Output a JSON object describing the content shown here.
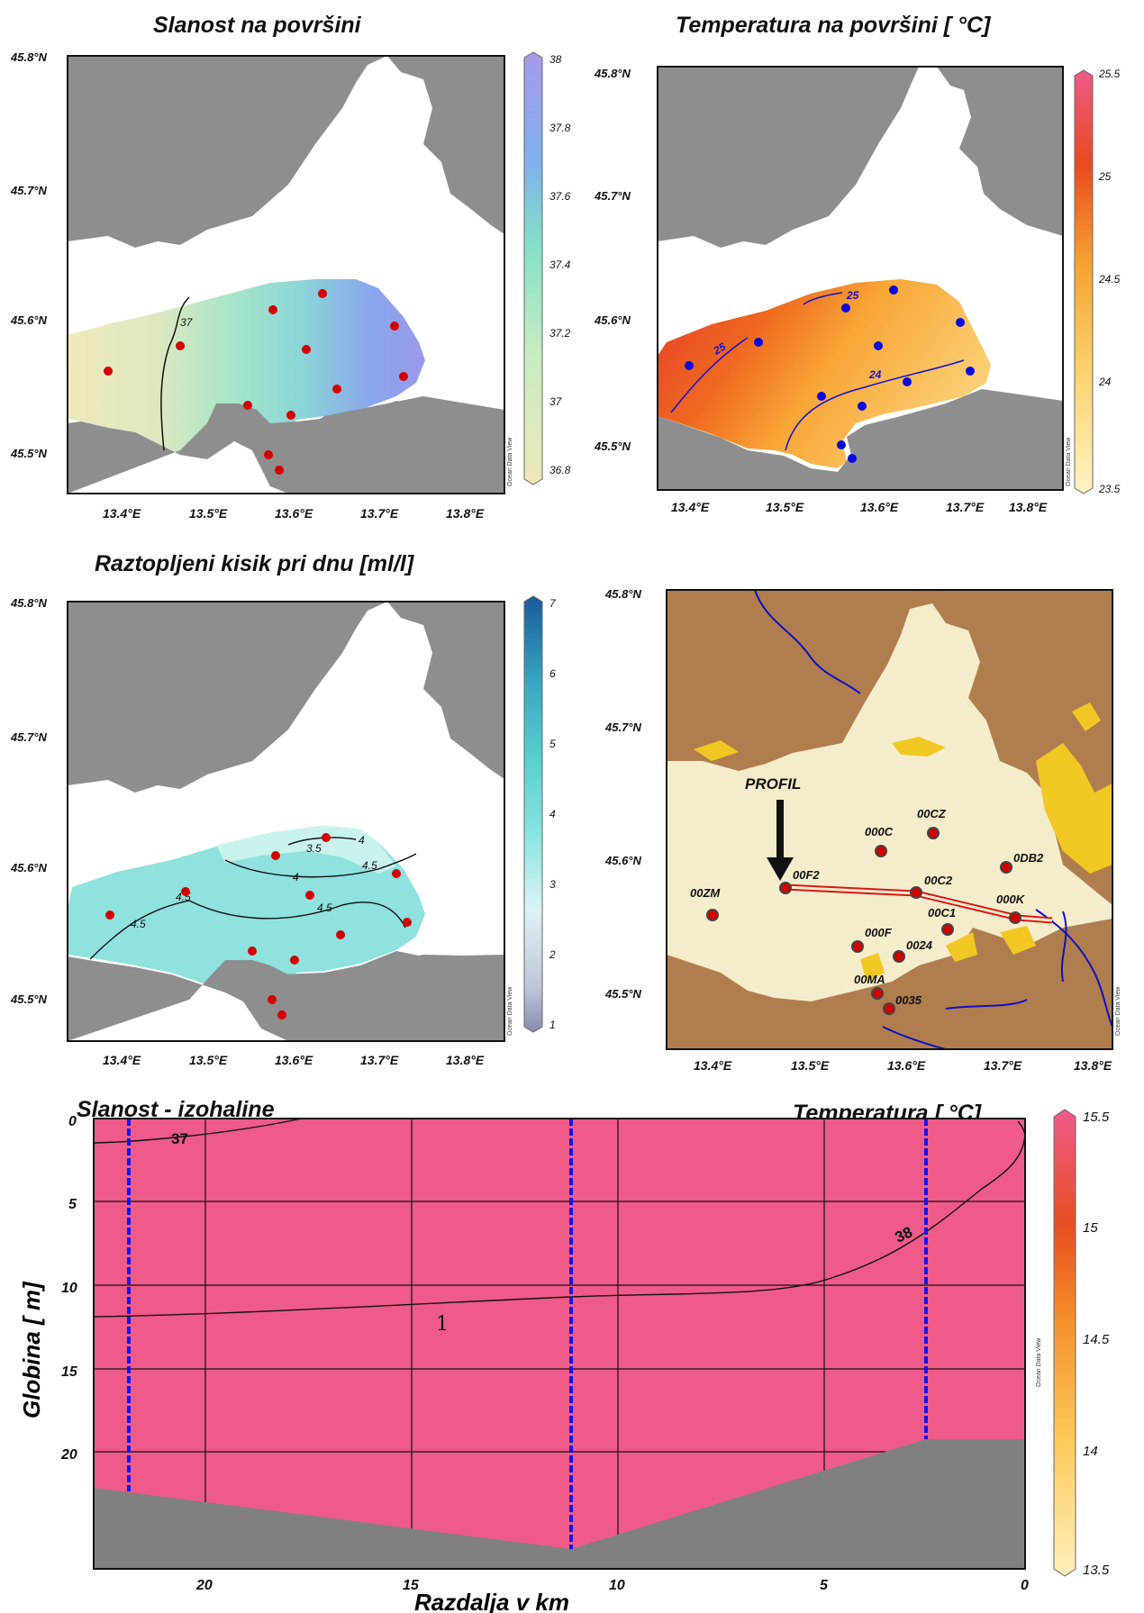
{
  "titles": {
    "salinity_surface": "Slanost na površini",
    "temperature_surface": "Temperatura na površini [ °C]",
    "oxygen_bottom": "Raztopljeni kisik pri dnu [ml/l]",
    "section_left": "Slanost - izohaline",
    "section_right": "Temperatura  [ °C]"
  },
  "map_axes": {
    "lat_ticks": [
      "45.8°N",
      "45.7°N",
      "45.6°N",
      "45.5°N"
    ],
    "lon_ticks": [
      "13.4°E",
      "13.5°E",
      "13.6°E",
      "13.7°E",
      "13.8°E"
    ]
  },
  "colorbars": {
    "salinity": [
      "38",
      "37.8",
      "37.6",
      "37.4",
      "37.2",
      "37",
      "36.8"
    ],
    "temperature": [
      "25.5",
      "25",
      "24.5",
      "24",
      "23.5"
    ],
    "oxygen": [
      "7",
      "6",
      "5",
      "4",
      "3",
      "2",
      "1"
    ],
    "section_temperature": [
      "15.5",
      "15",
      "14.5",
      "14",
      "13.5"
    ]
  },
  "contour_labels": {
    "salinity": [
      "37"
    ],
    "temperature": [
      "25",
      "24",
      "25"
    ],
    "oxygen": [
      "3.5",
      "4",
      "4",
      "4.5",
      "4.5",
      "4.5",
      "4.5"
    ],
    "section": [
      "37",
      "38",
      "1"
    ]
  },
  "stations": [
    "00ZM",
    "00F2",
    "000C",
    "00CZ",
    "0DB2",
    "00C2",
    "000K",
    "00C1",
    "000F",
    "0024",
    "00MA",
    "0035"
  ],
  "profile_label": "PROFIL",
  "credit": "Ocean Data View",
  "section": {
    "x_label": "Razdalja v km",
    "y_label": "Globina  [ m]",
    "x_ticks": [
      "20",
      "15",
      "10",
      "5",
      "0"
    ],
    "y_ticks": [
      "0",
      "5",
      "10",
      "15",
      "20"
    ]
  }
}
